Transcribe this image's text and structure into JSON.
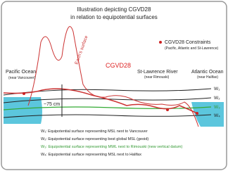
{
  "header": {
    "title": [
      "Illustration depicting CGVD28",
      "in relation to equipotential surfaces"
    ]
  },
  "labels": {
    "earth_surface": "Earth's surface",
    "cgvd28": "CGVD28",
    "offset": "~75 cm"
  },
  "places": [
    {
      "name": "Pacific Ocean",
      "note": "(near Vancouver)"
    },
    {
      "name": "St-Lawrence River",
      "note": "(near Rimouski)"
    },
    {
      "name": "Atlantic Ocean",
      "note": "(near Halifax)"
    }
  ],
  "legend": {
    "title": "CGVD28 Constraints",
    "note": "(Pacific, Atlantic and St-Lawrence)"
  },
  "surfaces": [
    {
      "label": "W₁",
      "description": "W₁: Equipotential surface representing MSL next to Vancouver"
    },
    {
      "label": "W₂",
      "description": "W₂: Equipotential surface representing best global MSL (geoid)"
    },
    {
      "label": "W₃",
      "description": "W₃: Equipotential surface representing MWL next to Rimouski (new vertical datum)"
    },
    {
      "label": "W₄",
      "description": "W₄: Equipotential surface representing MSL next to Halifax"
    }
  ]
}
